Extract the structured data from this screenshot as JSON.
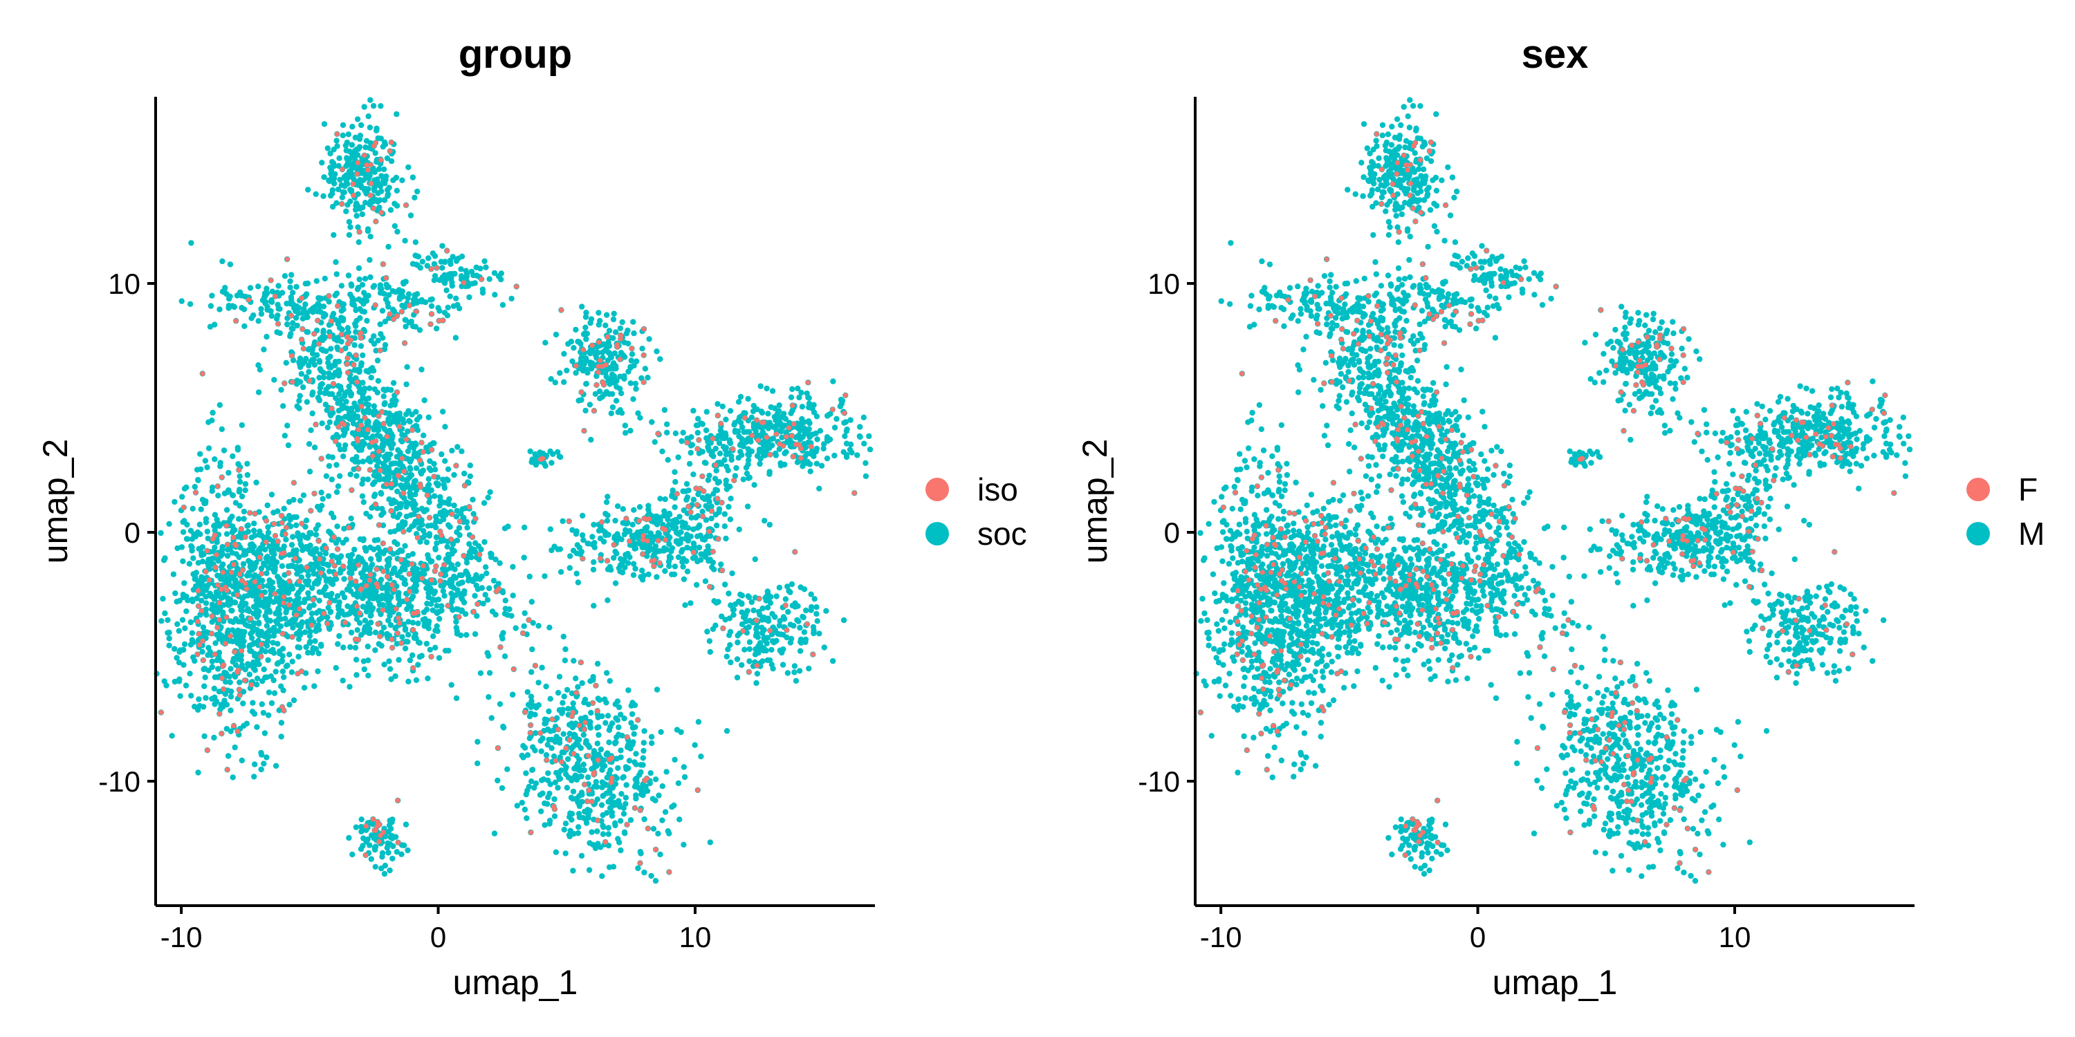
{
  "chart_data": [
    {
      "type": "scatter",
      "title": "group",
      "xlabel": "umap_1",
      "ylabel": "umap_2",
      "xlim": [
        -11,
        17
      ],
      "ylim": [
        -15,
        17.5
      ],
      "xticks": [
        -10,
        0,
        10
      ],
      "yticks": [
        -10,
        0,
        10
      ],
      "grid": false,
      "legend": {
        "position": "right"
      },
      "series": [
        {
          "name": "iso",
          "color": "#F8766D"
        },
        {
          "name": "soc",
          "color": "#00BFC4"
        }
      ]
    },
    {
      "type": "scatter",
      "title": "sex",
      "xlabel": "umap_1",
      "ylabel": "umap_2",
      "xlim": [
        -11,
        17
      ],
      "ylim": [
        -15,
        17.5
      ],
      "xticks": [
        -10,
        0,
        10
      ],
      "yticks": [
        -10,
        0,
        10
      ],
      "grid": false,
      "legend": {
        "position": "right"
      },
      "series": [
        {
          "name": "F",
          "color": "#F8766D"
        },
        {
          "name": "M",
          "color": "#00BFC4"
        }
      ]
    }
  ]
}
